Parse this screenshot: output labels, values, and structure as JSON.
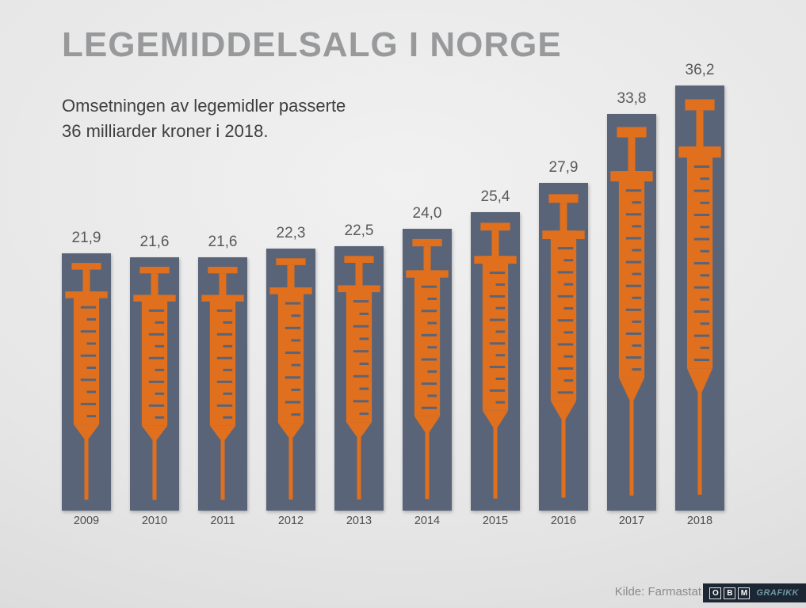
{
  "title": "LEGEMIDDELSALG I NORGE",
  "subtitle": {
    "line1": "Omsetningen av legemidler passerte",
    "line2": "36 milliarder kroner i 2018."
  },
  "source": "Kilde: Farmastat",
  "logo": {
    "letter1": "O",
    "letter2": "B",
    "letter3": "M",
    "text": "GRAFIKK"
  },
  "colors": {
    "bar": "#5a6478",
    "syringe": "#e0701e",
    "background": "#e6e6e6",
    "title_text": "#98999b",
    "body_text": "#3d3e40"
  },
  "chart_data": {
    "type": "bar",
    "title": "LEGEMIDDELSALG I NORGE",
    "subtitle": "Omsetningen av legemidler passerte 36 milliarder kroner i 2018.",
    "categories": [
      "2009",
      "2010",
      "2011",
      "2012",
      "2013",
      "2014",
      "2015",
      "2016",
      "2017",
      "2018"
    ],
    "values": [
      21.9,
      21.6,
      21.6,
      22.3,
      22.5,
      24.0,
      25.4,
      27.9,
      33.8,
      36.2
    ],
    "value_labels": [
      "21,9",
      "21,6",
      "21,6",
      "22,3",
      "22,5",
      "24,0",
      "25,4",
      "27,9",
      "33,8",
      "36,2"
    ],
    "unit": "milliarder kroner",
    "xlabel": "",
    "ylabel": "",
    "ylim": [
      0,
      36.2
    ],
    "grid": false,
    "legend": false,
    "bar_color": "#5a6478",
    "icon_color": "#e0701e",
    "icon": "syringe"
  }
}
